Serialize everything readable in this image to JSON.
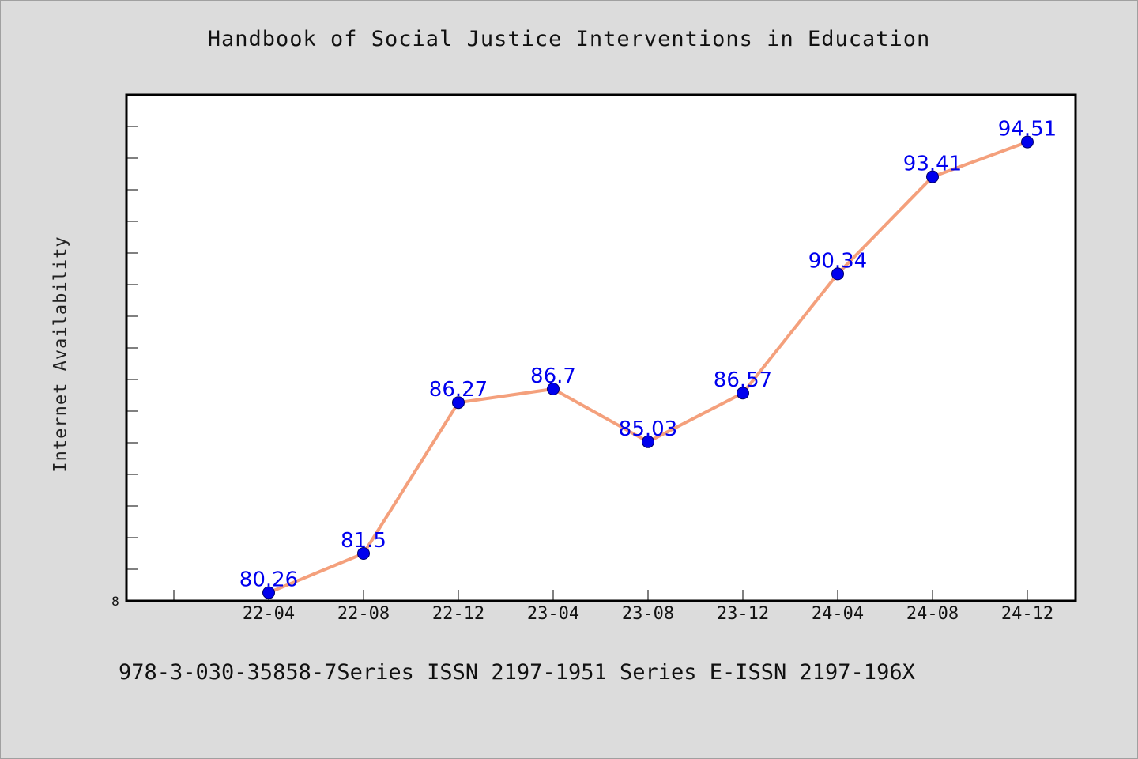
{
  "header": {
    "title": "Handbook of Social Justice Interventions in Education"
  },
  "footer": {
    "text": "978-3-030-35858-7Series ISSN 2197-1951 Series E-ISSN 2197-196X"
  },
  "chart_data": {
    "type": "line",
    "title": "Handbook of Social Justice Interventions in Education",
    "xlabel": "",
    "ylabel": "Internet Availability",
    "categories": [
      "22-04",
      "22-08",
      "22-12",
      "23-04",
      "23-08",
      "23-12",
      "24-04",
      "24-08",
      "24-12"
    ],
    "series": [
      {
        "values": [
          80.26,
          81.5,
          86.27,
          86.7,
          85.03,
          86.57,
          90.34,
          93.41,
          94.51
        ],
        "labels": [
          "80.26",
          "81.5",
          "86.27",
          "86.7",
          "85.03",
          "86.57",
          "90.34",
          "93.41",
          "94.51"
        ]
      }
    ],
    "y_origin_label": "8",
    "ylim": [
      80,
      96
    ],
    "grid": false,
    "colors": {
      "line": "#f4a07c",
      "marker": "#0000ee",
      "label": "#0000ee",
      "plot_bg": "#ffffff",
      "page_bg": "#dcdcdc"
    }
  }
}
